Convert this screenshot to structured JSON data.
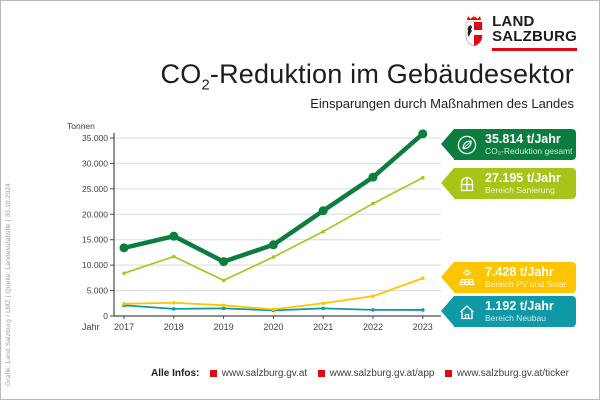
{
  "logo": {
    "line1": "LAND",
    "line2": "SALZBURG"
  },
  "header": {
    "title_co": "CO",
    "title_sub": "2",
    "title_rest": "-Reduktion im Gebäudesektor",
    "subtitle": "Einsparungen durch Maßnahmen des Landes"
  },
  "credit": "Grafik: Land Salzburg / LMZ  |  Quelle: Landesstatistik  |  30.10.2024",
  "badges": [
    {
      "value": "35.814 t/Jahr",
      "label": "CO₂-Reduktion gesamt",
      "color": "#0b7e3f",
      "icon": "leaf"
    },
    {
      "value": "27.195 t/Jahr",
      "label": "Bereich Sanierung",
      "color": "#a6c518",
      "icon": "window"
    },
    {
      "value": "7.428 t/Jahr",
      "label": "Bereich PV und Solar",
      "color": "#fdc400",
      "icon": "solar"
    },
    {
      "value": "1.192 t/Jahr",
      "label": "Bereich Neubau",
      "color": "#0f98a6",
      "icon": "house"
    }
  ],
  "footer": {
    "label": "Alle Infos:",
    "links": [
      "www.salzburg.gv.at",
      "www.salzburg.gv.at/app",
      "www.salzburg.gv.at/ticker"
    ]
  },
  "colors": {
    "brand_red": "#e30613",
    "text_dark": "#1d1d1b",
    "axis_text": "#3f3f3e",
    "gridline": "#d9d9d9",
    "total_green": "#0b7e3f",
    "sanierung_lime": "#a6c518",
    "pv_yellow": "#fdc400",
    "neubau_teal": "#0f98a6"
  },
  "chart_data": {
    "type": "line",
    "title": "CO2-Reduktion im Gebäudesektor",
    "subtitle": "Einsparungen durch Maßnahmen des Landes",
    "xlabel": "Jahr",
    "ylabel": "Tonnen",
    "x": [
      2017,
      2018,
      2019,
      2020,
      2021,
      2022,
      2023
    ],
    "ylim": [
      0,
      35000
    ],
    "ytick_step": 5000,
    "grid": true,
    "legend_position": "right-badges",
    "series": [
      {
        "name": "CO₂-Reduktion gesamt",
        "color": "#0b7e3f",
        "linewidth": 4.5,
        "marker_r": 4.5,
        "values": [
          13400,
          15700,
          10700,
          14000,
          20700,
          27300,
          35814
        ]
      },
      {
        "name": "Bereich Sanierung",
        "color": "#a6c518",
        "linewidth": 1.6,
        "marker_r": 1.8,
        "values": [
          8400,
          11700,
          7000,
          11600,
          16600,
          22100,
          27195
        ]
      },
      {
        "name": "Bereich PV und Solar",
        "color": "#fdc400",
        "linewidth": 1.8,
        "marker_r": 1.8,
        "values": [
          2400,
          2600,
          2100,
          1300,
          2500,
          3900,
          7428
        ]
      },
      {
        "name": "Bereich Neubau",
        "color": "#0f98a6",
        "linewidth": 1.8,
        "marker_r": 1.8,
        "values": [
          2100,
          1400,
          1500,
          1100,
          1500,
          1200,
          1192
        ]
      }
    ]
  }
}
